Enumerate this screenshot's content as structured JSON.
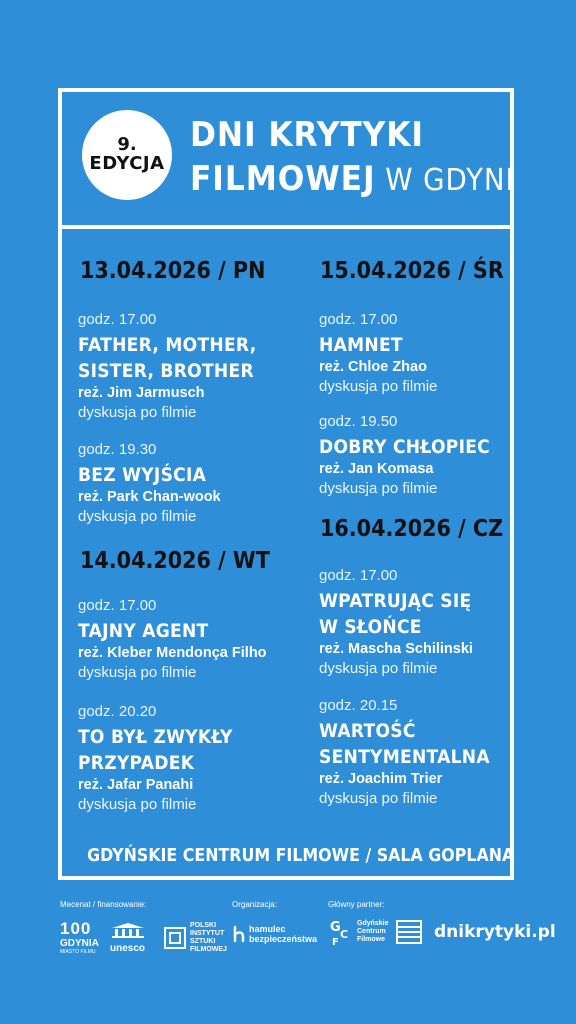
{
  "header": {
    "edition_number": "9.",
    "edition_label": "EDYCJA",
    "title_line1": "DNI KRYTYKI",
    "title_line2_bold": "FILMOWEJ",
    "title_line2_thin": "W GDYNI"
  },
  "days": [
    {
      "date": "13.04.2026 / PN",
      "screenings": [
        {
          "time": "godz. 17.00",
          "title_lines": [
            "FATHER, MOTHER,",
            "SISTER, BROTHER"
          ],
          "director": "reż. Jim Jarmusch",
          "note": "dyskusja po filmie"
        },
        {
          "time": "godz. 19.30",
          "title_lines": [
            "BEZ WYJŚCIA"
          ],
          "director": "reż. Park Chan-wook",
          "note": "dyskusja po filmie"
        }
      ]
    },
    {
      "date": "14.04.2026 / WT",
      "screenings": [
        {
          "time": "godz. 17.00",
          "title_lines": [
            "TAJNY AGENT"
          ],
          "director": "reż. Kleber Mendonça Filho",
          "note": "dyskusja po filmie"
        },
        {
          "time": "godz. 20.20",
          "title_lines": [
            "TO BYŁ ZWYKŁY",
            "PRZYPADEK"
          ],
          "director": "reż. Jafar Panahi",
          "note": "dyskusja po filmie"
        }
      ]
    },
    {
      "date": "15.04.2026 / ŚR",
      "screenings": [
        {
          "time": "godz. 17.00",
          "title_lines": [
            "HAMNET"
          ],
          "director": "reż. Chloe Zhao",
          "note": "dyskusja po filmie"
        },
        {
          "time": "godz. 19.50",
          "title_lines": [
            "DOBRY CHŁOPIEC"
          ],
          "director": "reż. Jan Komasa",
          "note": "dyskusja po filmie"
        }
      ]
    },
    {
      "date": "16.04.2026 / CZ",
      "screenings": [
        {
          "time": "godz. 17.00",
          "title_lines": [
            "WPATRUJĄC SIĘ",
            "W SŁOŃCE"
          ],
          "director": "reż. Mascha Schilinski",
          "note": "dyskusja po filmie"
        },
        {
          "time": "godz. 20.15",
          "title_lines": [
            "WARTOŚĆ",
            "SENTYMENTALNA"
          ],
          "director": "reż. Joachim Trier",
          "note": "dyskusja po filmie"
        }
      ]
    }
  ],
  "venue": "GDYŃSKIE CENTRUM FILMOWE / SALA GOPLANA",
  "footer": {
    "patron_label": "Mecenat / finansowanie:",
    "organizer_label": "Organizacja:",
    "partner_label": "Główny partner:",
    "logos": {
      "gdynia_number": "100",
      "gdynia_name": "GDYNIA",
      "gdynia_sub": "MIASTO FILMU",
      "unesco": "unesco",
      "pisf_l1": "POLSKI",
      "pisf_l2": "INSTYTUT",
      "pisf_l3": "SZTUKI",
      "pisf_l4": "FILMOWEJ",
      "hamulec_l1": "hamulec",
      "hamulec_l2": "bezpieczeństwa",
      "gcf_l1": "Gdyńskie",
      "gcf_l2": "Centrum",
      "gcf_l3": "Filmowe"
    },
    "website": "dnikrytyki.pl"
  },
  "colors": {
    "background": "#2e8fd8",
    "date_text": "#111111",
    "frame": "#ffffff"
  }
}
